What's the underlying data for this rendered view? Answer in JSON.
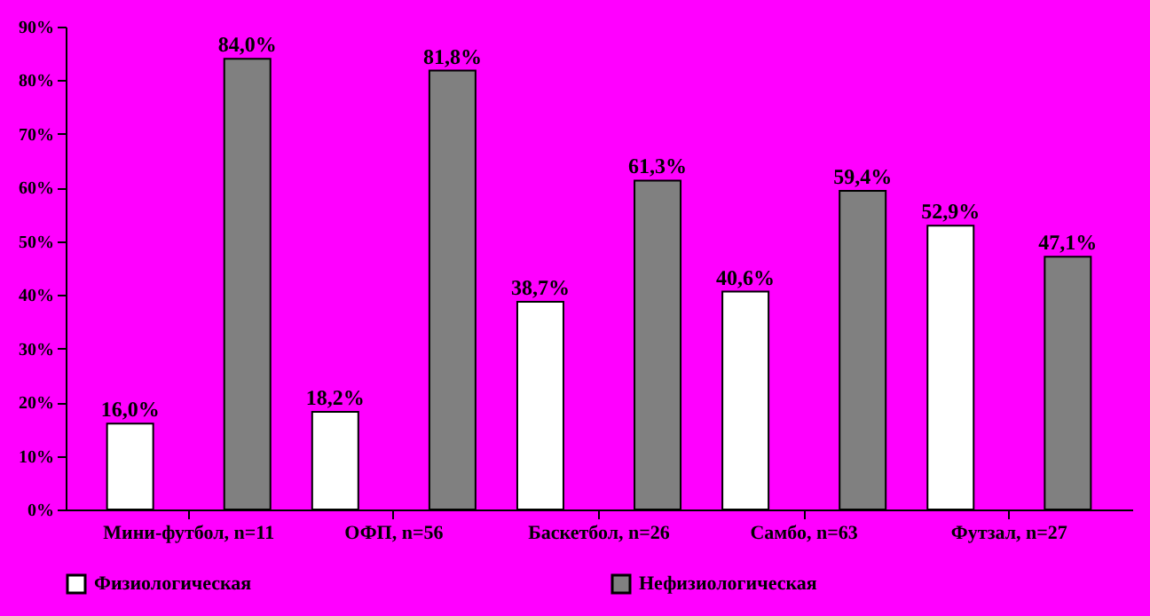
{
  "chart_data": {
    "type": "bar",
    "categories": [
      "Мини-футбол, n=11",
      "ОФП, n=56",
      "Баскетбол, n=26",
      "Самбо, n=63",
      "Футзал, n=27"
    ],
    "series": [
      {
        "name": "Физиологическая",
        "color": "#ffffff",
        "values": [
          16.0,
          18.2,
          38.7,
          40.6,
          52.9
        ],
        "value_labels": [
          "16,0%",
          "18,2%",
          "38,7%",
          "40,6%",
          "52,9%"
        ]
      },
      {
        "name": "Нефизиологическая",
        "color": "#808080",
        "values": [
          84.0,
          81.8,
          61.3,
          59.4,
          47.1
        ],
        "value_labels": [
          "84,0%",
          "81,8%",
          "61,3%",
          "59,4%",
          "47,1%"
        ]
      }
    ],
    "ylim": [
      0,
      90
    ],
    "yticks": [
      {
        "value": 0,
        "label": "0%"
      },
      {
        "value": 10,
        "label": "10%"
      },
      {
        "value": 20,
        "label": "20%"
      },
      {
        "value": 30,
        "label": "30%"
      },
      {
        "value": 40,
        "label": "40%"
      },
      {
        "value": 50,
        "label": "50%"
      },
      {
        "value": 60,
        "label": "60%"
      },
      {
        "value": 70,
        "label": "70%"
      },
      {
        "value": 80,
        "label": "80%"
      },
      {
        "value": 90,
        "label": "90%"
      }
    ],
    "grid": false,
    "legend": "bottom"
  }
}
